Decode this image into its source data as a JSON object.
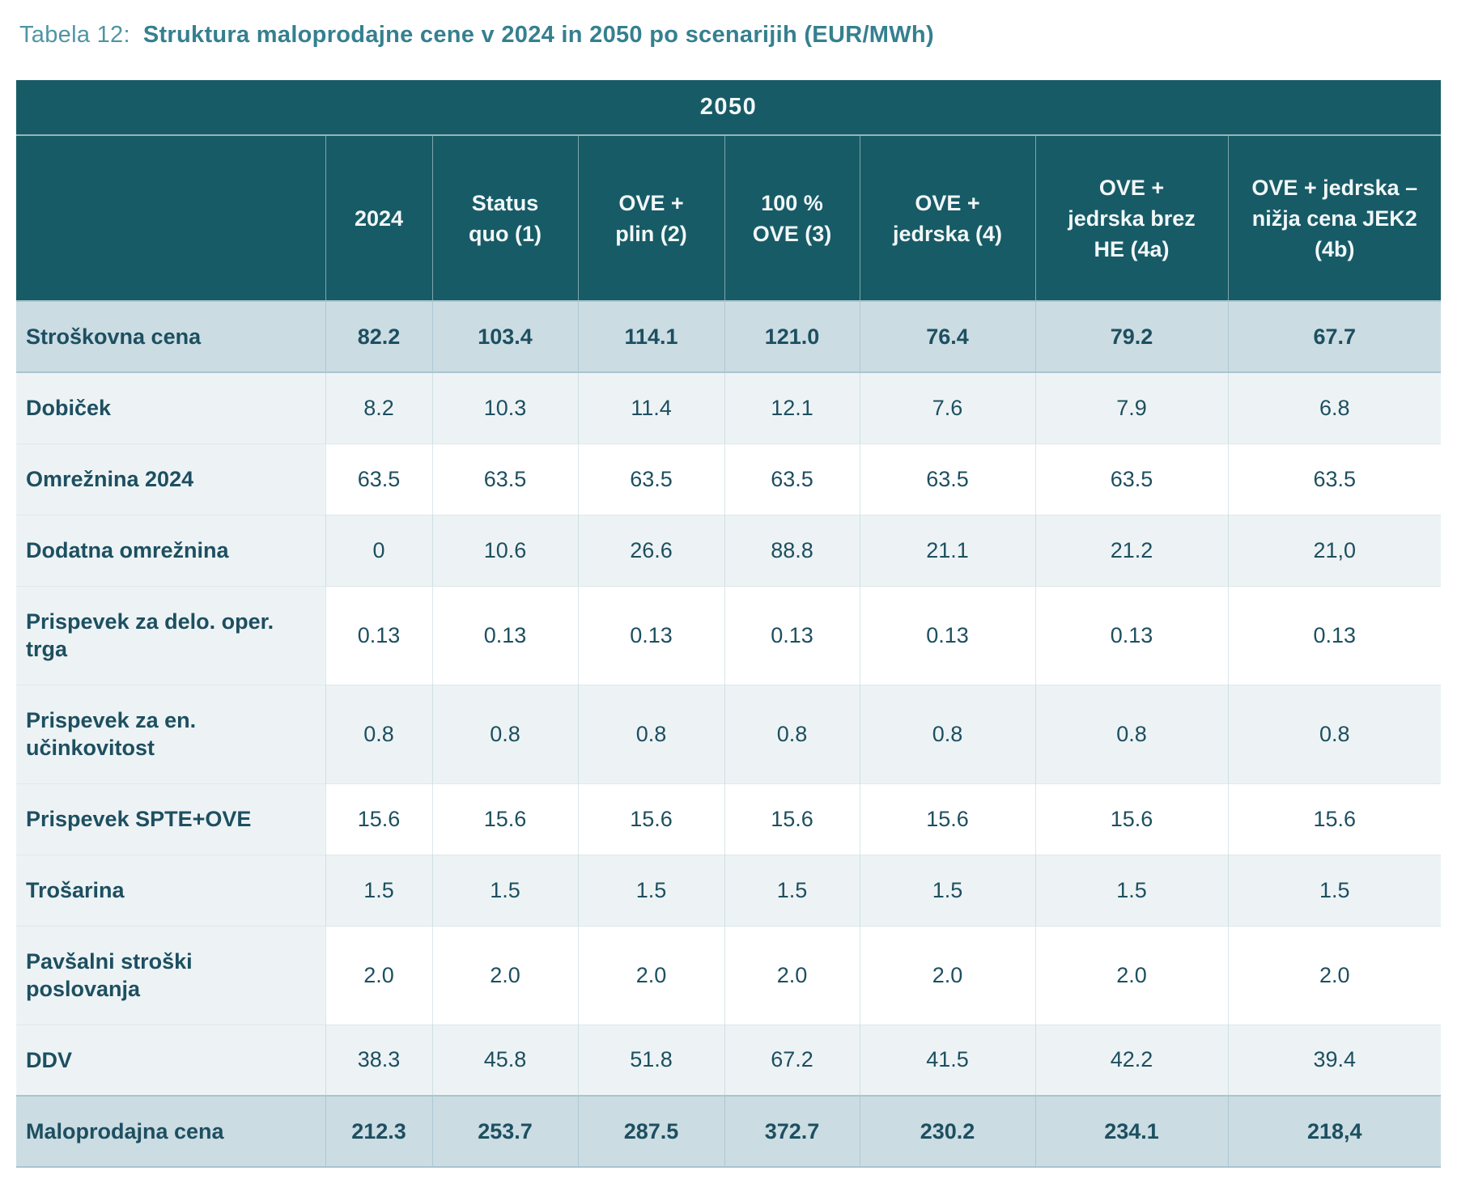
{
  "page": {
    "title_prefix": "Tabela 12:",
    "title": "Struktura maloprodajne cene v 2024 in 2050 po scenarijih (EUR/MWh)"
  },
  "table": {
    "year_banner": "2050",
    "columns": [
      "",
      "2024",
      "Status quo (1)",
      "OVE + plin (2)",
      "100 % OVE (3)",
      "OVE + jedrska (4)",
      "OVE + jedrska brez HE (4a)",
      "OVE + jedrska – nižja cena JEK2 (4b)"
    ],
    "rows": [
      {
        "label": "Stroškovna cena",
        "style": "highlight",
        "values": [
          "82.2",
          "103.4",
          "114.1",
          "121.0",
          "76.4",
          "79.2",
          "67.7"
        ]
      },
      {
        "label": "Dobiček",
        "style": "light",
        "values": [
          "8.2",
          "10.3",
          "11.4",
          "12.1",
          "7.6",
          "7.9",
          "6.8"
        ]
      },
      {
        "label": "Omrežnina 2024",
        "style": "white",
        "values": [
          "63.5",
          "63.5",
          "63.5",
          "63.5",
          "63.5",
          "63.5",
          "63.5"
        ]
      },
      {
        "label": "Dodatna omrežnina",
        "style": "light",
        "values": [
          "0",
          "10.6",
          "26.6",
          "88.8",
          "21.1",
          "21.2",
          "21,0"
        ]
      },
      {
        "label": "Prispevek za delo. oper. trga",
        "style": "white",
        "values": [
          "0.13",
          "0.13",
          "0.13",
          "0.13",
          "0.13",
          "0.13",
          "0.13"
        ]
      },
      {
        "label": "Prispevek za en. učinkovitost",
        "style": "light",
        "values": [
          "0.8",
          "0.8",
          "0.8",
          "0.8",
          "0.8",
          "0.8",
          "0.8"
        ]
      },
      {
        "label": "Prispevek SPTE+OVE",
        "style": "white",
        "values": [
          "15.6",
          "15.6",
          "15.6",
          "15.6",
          "15.6",
          "15.6",
          "15.6"
        ]
      },
      {
        "label": "Trošarina",
        "style": "light",
        "values": [
          "1.5",
          "1.5",
          "1.5",
          "1.5",
          "1.5",
          "1.5",
          "1.5"
        ]
      },
      {
        "label": "Pavšalni stroški poslovanja",
        "style": "white",
        "values": [
          "2.0",
          "2.0",
          "2.0",
          "2.0",
          "2.0",
          "2.0",
          "2.0"
        ]
      },
      {
        "label": "DDV",
        "style": "light",
        "values": [
          "38.3",
          "45.8",
          "51.8",
          "67.2",
          "41.5",
          "42.2",
          "39.4"
        ]
      },
      {
        "label": "Maloprodajna cena",
        "style": "highlight",
        "values": [
          "212.3",
          "253.7",
          "287.5",
          "372.7",
          "230.2",
          "234.1",
          "218,4"
        ]
      }
    ]
  },
  "colors": {
    "header_bg": "#175b66",
    "header_text": "#f2f7f8",
    "highlight_row_bg": "#cbdce3",
    "light_row_bg": "#edf3f5",
    "white_row_bg": "#ffffff",
    "body_text": "#1d4f60",
    "title_prefix": "#4f95a4",
    "title_text": "#35808f",
    "row_border": "#dde8eb",
    "highlight_border": "#a9c5cf"
  }
}
